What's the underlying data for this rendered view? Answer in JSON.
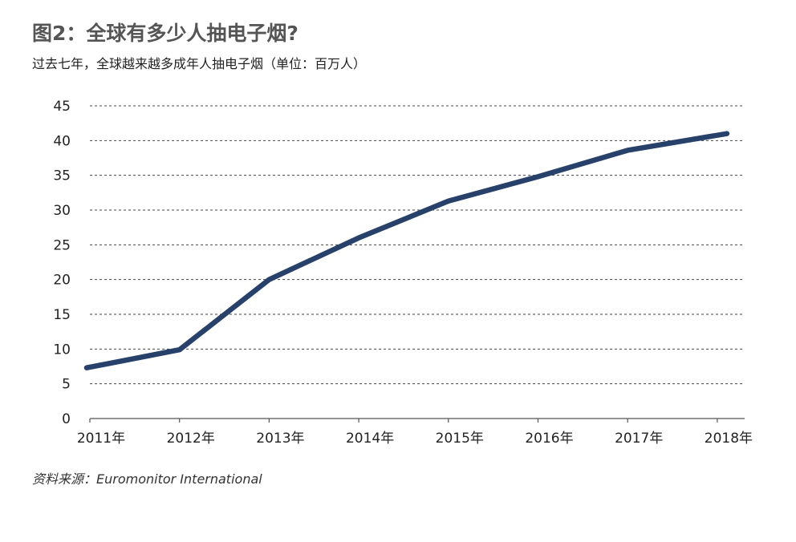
{
  "chart_data": {
    "type": "line",
    "title": "图2：全球有多少人抽电子烟?",
    "subtitle": "过去七年，全球越来越多成年人抽电子烟（单位：百万人）",
    "source": "资料来源：Euromonitor International",
    "categories": [
      "2011年",
      "2012年",
      "2013年",
      "2014年",
      "2015年",
      "2016年",
      "2017年",
      "2018年"
    ],
    "series": [
      {
        "values": [
          7.3,
          9.9,
          20.0,
          26.0,
          31.3,
          34.8,
          38.6,
          41.0
        ]
      }
    ],
    "ylim": [
      0,
      45
    ],
    "yticks": [
      "0",
      "5",
      "10",
      "15",
      "20",
      "25",
      "30",
      "35",
      "40",
      "45"
    ],
    "grid": "horizontal-dashed",
    "line_color": "#27416b",
    "grid_color": "#444444"
  }
}
